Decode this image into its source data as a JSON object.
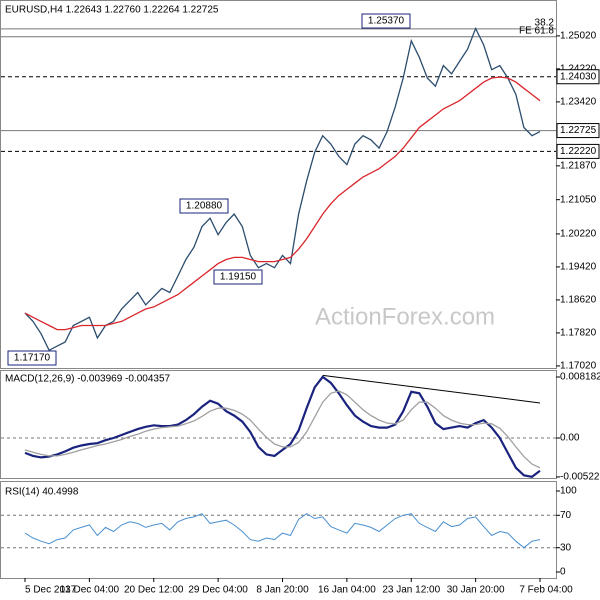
{
  "watermark": "ActionForex.com",
  "chart_data": [
    {
      "type": "line",
      "title": "EURUSD,H4  1.22643 1.22760 1.22264 1.22725",
      "categories": [
        "5 Dec 2017",
        null,
        null,
        null,
        null,
        null,
        null,
        null,
        "13 Dec 04:00",
        null,
        null,
        null,
        null,
        null,
        null,
        null,
        "20 Dec 12:00",
        null,
        null,
        null,
        null,
        null,
        null,
        null,
        "29 Dec 04:00",
        null,
        null,
        null,
        null,
        null,
        null,
        null,
        "8 Jan 20:00",
        null,
        null,
        null,
        null,
        null,
        null,
        null,
        "16 Jan 04:00",
        null,
        null,
        null,
        null,
        null,
        null,
        null,
        "23 Jan 12:00",
        null,
        null,
        null,
        null,
        null,
        null,
        null,
        "30 Jan 20:00",
        null,
        null,
        null,
        null,
        null,
        null,
        null,
        "7 Feb 04:00"
      ],
      "series": [
        {
          "color": "#2b4d6e",
          "values": [
            1.183,
            1.181,
            1.178,
            1.174,
            1.175,
            1.176,
            1.18,
            1.181,
            1.182,
            1.177,
            1.18,
            1.181,
            1.184,
            1.186,
            1.188,
            1.185,
            1.187,
            1.189,
            1.188,
            1.192,
            1.196,
            1.199,
            1.204,
            1.206,
            1.202,
            1.205,
            1.207,
            1.204,
            1.197,
            1.194,
            1.195,
            1.194,
            1.197,
            1.195,
            1.207,
            1.215,
            1.222,
            1.226,
            1.224,
            1.221,
            1.219,
            1.224,
            1.226,
            1.225,
            1.223,
            1.227,
            1.233,
            1.24,
            1.249,
            1.245,
            1.24,
            1.238,
            1.243,
            1.241,
            1.244,
            1.247,
            1.252,
            1.248,
            1.242,
            1.243,
            1.24,
            1.236,
            1.228,
            1.226,
            1.227
          ]
        },
        {
          "color": "#d9262c",
          "values": [
            1.183,
            1.182,
            1.181,
            1.18,
            1.179,
            1.179,
            1.1795,
            1.18,
            1.18,
            1.18,
            1.18,
            1.1805,
            1.181,
            1.182,
            1.183,
            1.184,
            1.1845,
            1.1855,
            1.1865,
            1.1875,
            1.189,
            1.1905,
            1.192,
            1.1935,
            1.195,
            1.196,
            1.1965,
            1.1965,
            1.196,
            1.1955,
            1.1955,
            1.1955,
            1.196,
            1.1965,
            1.1985,
            1.201,
            1.204,
            1.207,
            1.2095,
            1.2115,
            1.213,
            1.2145,
            1.216,
            1.217,
            1.218,
            1.2195,
            1.221,
            1.223,
            1.2255,
            1.228,
            1.2295,
            1.231,
            1.2325,
            1.2335,
            1.2345,
            1.236,
            1.2375,
            1.239,
            1.24,
            1.2402,
            1.24,
            1.239,
            1.2375,
            1.236,
            1.2345
          ]
        }
      ],
      "ylim": [
        1.1697,
        1.2589
      ],
      "yticks": [
        {
          "value": 1.1702,
          "label": "1.17020"
        },
        {
          "value": 1.1782,
          "label": "1.17820"
        },
        {
          "value": 1.1862,
          "label": "1.18620"
        },
        {
          "value": 1.1942,
          "label": "1.19420"
        },
        {
          "value": 1.2022,
          "label": "1.20220"
        },
        {
          "value": 1.2105,
          "label": "1.21050"
        },
        {
          "value": 1.2187,
          "label": "1.21870"
        },
        {
          "value": 1.2342,
          "label": "1.23420"
        },
        {
          "value": 1.2422,
          "label": "1.24220"
        },
        {
          "value": 1.2502,
          "label": "1.25020"
        }
      ],
      "grid": false,
      "levels": [
        {
          "value": 1.2519,
          "label": "38.2",
          "dash": false,
          "tag": "text"
        },
        {
          "value": 1.25,
          "label": "FE 61.8",
          "dash": false,
          "tag": "text"
        },
        {
          "value": 1.2403,
          "label": "1.24030",
          "dash": true,
          "tag": "box"
        },
        {
          "value": 1.22725,
          "label": "1.22725",
          "dash": false,
          "tag": "box"
        },
        {
          "value": 1.2222,
          "label": "1.22220",
          "dash": true,
          "tag": "box"
        }
      ],
      "annotations": [
        {
          "value": 1.2537,
          "label": "1.25370"
        },
        {
          "value": 1.2088,
          "label": "1.20880"
        },
        {
          "value": 1.1915,
          "label": "1.19150"
        },
        {
          "value": 1.1717,
          "label": "1.17170"
        }
      ]
    },
    {
      "type": "line",
      "title": "MACD(12,26,9) -0.003969 -0.004357",
      "series": [
        {
          "color": "#1a237e",
          "values": [
            -0.002,
            -0.0024,
            -0.0026,
            -0.0025,
            -0.0022,
            -0.0018,
            -0.0013,
            -0.001,
            -0.0008,
            -0.0007,
            -0.0003,
            0,
            0.0004,
            0.0008,
            0.0012,
            0.0015,
            0.0017,
            0.0016,
            0.0016,
            0.0018,
            0.0024,
            0.0032,
            0.0042,
            0.005,
            0.0046,
            0.0036,
            0.003,
            0.0022,
            0.0008,
            -0.0012,
            -0.0022,
            -0.0024,
            -0.0016,
            -0.0008,
            0.001,
            0.004,
            0.0068,
            0.0082,
            0.0074,
            0.006,
            0.0044,
            0.003,
            0.0022,
            0.0016,
            0.0014,
            0.0014,
            0.0018,
            0.0036,
            0.0062,
            0.006,
            0.0042,
            0.002,
            0.0012,
            0.0014,
            0.0016,
            0.0014,
            0.002,
            0.0024,
            0.0014,
            0,
            -0.002,
            -0.004,
            -0.005,
            -0.0052,
            -0.0044
          ]
        },
        {
          "color": "#a0a0a0",
          "values": [
            -0.0016,
            -0.0019,
            -0.0022,
            -0.0024,
            -0.0024,
            -0.0022,
            -0.0019,
            -0.0016,
            -0.0013,
            -0.001,
            -0.0008,
            -0.0005,
            -0.0002,
            0.0002,
            0.0005,
            0.0009,
            0.0012,
            0.0014,
            0.0015,
            0.0016,
            0.0019,
            0.0023,
            0.0029,
            0.0036,
            0.004,
            0.004,
            0.0037,
            0.0032,
            0.0024,
            0.0012,
            0.0001,
            -0.0008,
            -0.0012,
            -0.0012,
            -0.0006,
            0.0008,
            0.0028,
            0.0048,
            0.006,
            0.0063,
            0.0058,
            0.0048,
            0.0038,
            0.003,
            0.0024,
            0.002,
            0.0019,
            0.0024,
            0.0038,
            0.0048,
            0.0048,
            0.004,
            0.003,
            0.0024,
            0.002,
            0.0018,
            0.0018,
            0.002,
            0.0019,
            0.0013,
            0.0002,
            -0.0012,
            -0.0025,
            -0.0035,
            -0.004
          ]
        }
      ],
      "ylim": [
        -0.005366,
        0.009121
      ],
      "yticks": [
        -0.005223,
        {
          "value": 0,
          "label": "0.00"
        },
        0.008182
      ],
      "grid": "inner",
      "trendline": [
        0.0084,
        0.0047
      ]
    },
    {
      "type": "line",
      "title": "RSI(14) 40.4998",
      "series": [
        {
          "color": "#4a90d0",
          "values": [
            48,
            42,
            38,
            35,
            40,
            42,
            52,
            55,
            58,
            45,
            55,
            50,
            58,
            62,
            60,
            55,
            58,
            60,
            52,
            62,
            66,
            68,
            72,
            60,
            62,
            64,
            58,
            50,
            40,
            38,
            42,
            40,
            48,
            45,
            65,
            72,
            66,
            68,
            56,
            52,
            48,
            60,
            58,
            55,
            50,
            58,
            66,
            70,
            72,
            60,
            55,
            50,
            62,
            56,
            58,
            66,
            68,
            56,
            45,
            50,
            48,
            38,
            30,
            38,
            40
          ]
        }
      ],
      "ylim": [
        -7.4,
        111.1
      ],
      "yticks": [
        0,
        30,
        70,
        100
      ],
      "grid": "inner"
    }
  ]
}
